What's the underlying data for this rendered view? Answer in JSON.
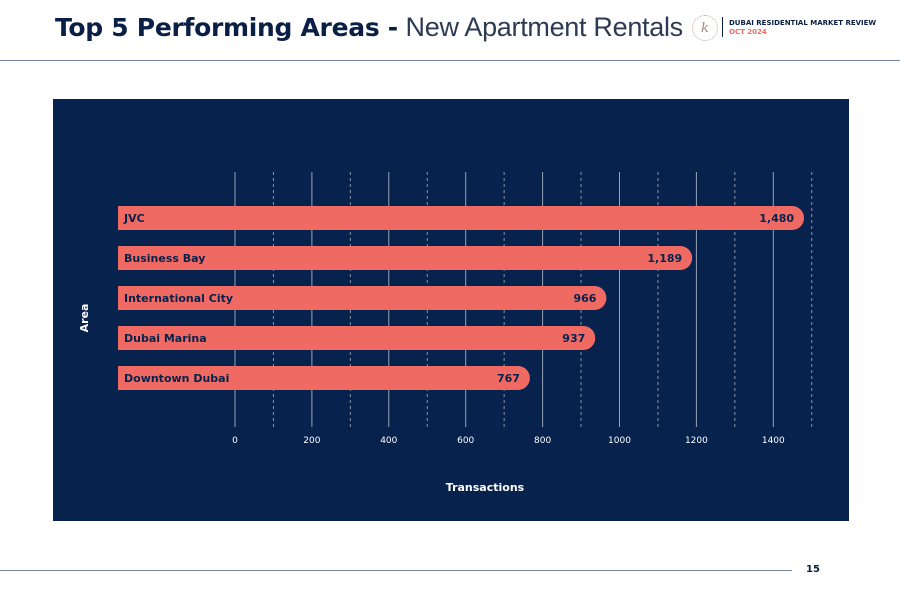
{
  "header": {
    "title_bold": "Top 5 Performing Areas -",
    "title_light": "New Apartment Rentals",
    "logo_mark": "k",
    "report_name": "DUBAI RESIDENTIAL MARKET REVIEW",
    "report_date": "OCT 2024"
  },
  "footer": {
    "page_number": "15"
  },
  "colors": {
    "panel_bg": "#07224d",
    "bar": "#ee6a63",
    "text_dark": "#0a1f45",
    "text_light": "#ffffff",
    "accent": "#ee6a63"
  },
  "chart_data": {
    "type": "bar",
    "orientation": "horizontal",
    "categories": [
      "JVC",
      "Business Bay",
      "International City",
      "Dubai Marina",
      "Downtown Dubai"
    ],
    "values": [
      1480,
      1189,
      966,
      937,
      767
    ],
    "value_labels": [
      "1,480",
      "1,189",
      "966",
      "937",
      "767"
    ],
    "xlabel": "Transactions",
    "ylabel": "Area",
    "xlim": [
      0,
      1500
    ],
    "x_ticks": [
      0,
      200,
      400,
      600,
      800,
      1000,
      1200,
      1400
    ],
    "grid": true
  }
}
